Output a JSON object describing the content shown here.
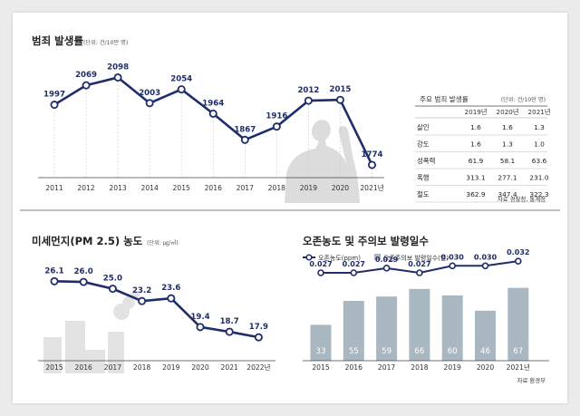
{
  "colors": {
    "line": "#1f2d6b",
    "bar": "#a8b7c0",
    "silhouette": "#dcdcdc"
  },
  "crime": {
    "title": "범죄 발생률",
    "unit": "(단위: 건/10만 명)",
    "table": {
      "title": "주요 범죄 발생률",
      "unit": "(단위: 건/10만 명)",
      "columns": [
        "2019년",
        "2020년",
        "2021년"
      ],
      "rows": [
        {
          "label": "살인",
          "values": [
            "1.6",
            "1.6",
            "1.3"
          ]
        },
        {
          "label": "강도",
          "values": [
            "1.6",
            "1.3",
            "1.0"
          ]
        },
        {
          "label": "성폭력",
          "values": [
            "61.9",
            "58.1",
            "63.6"
          ]
        },
        {
          "label": "폭행",
          "values": [
            "313.1",
            "277.1",
            "231.0"
          ]
        },
        {
          "label": "절도",
          "values": [
            "362.9",
            "347.4",
            "322.3"
          ]
        }
      ],
      "source": "자료 경찰청, 통계청"
    }
  },
  "dust": {
    "title": "미세먼지(PM 2.5) 농도",
    "unit": "(단위: ㎍/㎥)"
  },
  "ozone": {
    "title": "오존농도 및 주의보 발령일수",
    "legend": {
      "line": "오존농도(ppm)",
      "bar": "오존주의보 발령일수(일)"
    },
    "source": "자료 환경부"
  },
  "chart_data": [
    {
      "type": "line",
      "title": "범죄 발생률",
      "x": [
        "2011",
        "2012",
        "2013",
        "2014",
        "2015",
        "2016",
        "2017",
        "2018",
        "2019",
        "2020",
        "2021년"
      ],
      "values": [
        1997,
        2069,
        2098,
        2003,
        2054,
        1964,
        1867,
        1916,
        2012,
        2015,
        1774
      ],
      "ylim": [
        1700,
        2150
      ]
    },
    {
      "type": "line",
      "title": "미세먼지(PM 2.5) 농도",
      "x": [
        "2015",
        "2016",
        "2017",
        "2018",
        "2019",
        "2020",
        "2021",
        "2022년"
      ],
      "values": [
        26.1,
        26.0,
        25.0,
        23.2,
        23.6,
        19.4,
        18.7,
        17.9
      ],
      "labels": [
        "26.1",
        "26.0",
        "25.0",
        "23.2",
        "23.6",
        "19.4",
        "18.7",
        "17.9"
      ],
      "ylim": [
        15,
        28
      ]
    },
    {
      "type": "bar",
      "title": "오존농도 및 주의보 발령일수",
      "categories": [
        "2015",
        "2016",
        "2017",
        "2018",
        "2019",
        "2020",
        "2021년"
      ],
      "series": [
        {
          "name": "오존주의보 발령일수(일)",
          "values": [
            33,
            55,
            59,
            66,
            60,
            46,
            67
          ]
        },
        {
          "name": "오존농도(ppm)",
          "values": [
            0.027,
            0.027,
            0.029,
            0.027,
            0.03,
            0.03,
            0.032
          ],
          "labels": [
            "0.027",
            "0.027",
            "0.029",
            "0.027",
            "0.030",
            "0.030",
            "0.032"
          ]
        }
      ],
      "ylim_bar": [
        0,
        75
      ],
      "ylim_line": [
        0.02,
        0.034
      ]
    }
  ]
}
